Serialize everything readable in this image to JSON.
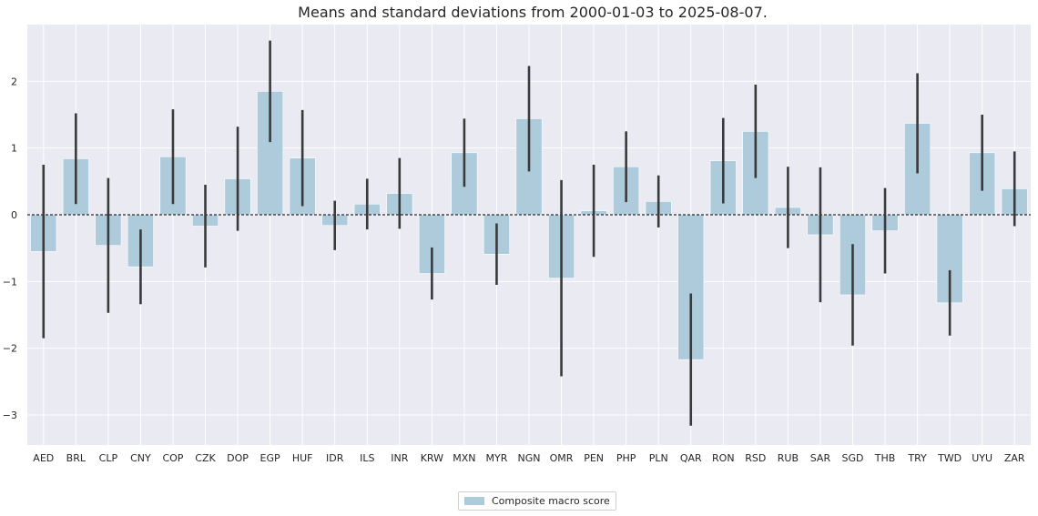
{
  "chart_data": {
    "type": "bar",
    "title": "Means and standard deviations from 2000-01-03 to 2025-08-07.",
    "xlabel": "",
    "ylabel": "",
    "ylim": [
      -3.45,
      2.85
    ],
    "yticks": [
      -3,
      -2,
      -1,
      0,
      1,
      2
    ],
    "ytick_labels": [
      "−3",
      "−2",
      "−1",
      "0",
      "1",
      "2"
    ],
    "grid": true,
    "legend_position": "bottom-center",
    "bar_color": "#aecbdb",
    "errorbar_color": "#3a3a3a",
    "background_color": "#eaeaf2",
    "categories": [
      "AED",
      "BRL",
      "CLP",
      "CNY",
      "COP",
      "CZK",
      "DOP",
      "EGP",
      "HUF",
      "IDR",
      "ILS",
      "INR",
      "KRW",
      "MXN",
      "MYR",
      "NGN",
      "OMR",
      "PEN",
      "PHP",
      "PLN",
      "QAR",
      "RON",
      "RSD",
      "RUB",
      "SAR",
      "SGD",
      "THB",
      "TRY",
      "TWD",
      "UYU",
      "ZAR"
    ],
    "series": [
      {
        "name": "Composite macro score",
        "values": [
          -0.55,
          0.84,
          -0.46,
          -0.78,
          0.87,
          -0.17,
          0.54,
          1.85,
          0.85,
          -0.16,
          0.16,
          0.32,
          -0.88,
          0.93,
          -0.59,
          1.44,
          -0.95,
          0.06,
          0.72,
          0.2,
          -2.17,
          0.81,
          1.25,
          0.11,
          -0.3,
          -1.2,
          -0.24,
          1.37,
          -1.32,
          0.93,
          0.39
        ],
        "std": [
          1.3,
          0.68,
          1.01,
          0.56,
          0.71,
          0.62,
          0.78,
          0.76,
          0.72,
          0.37,
          0.38,
          0.53,
          0.39,
          0.51,
          0.46,
          0.79,
          1.47,
          0.69,
          0.53,
          0.39,
          0.99,
          0.64,
          0.7,
          0.61,
          1.01,
          0.76,
          0.64,
          0.75,
          0.49,
          0.57,
          0.56
        ]
      }
    ]
  }
}
